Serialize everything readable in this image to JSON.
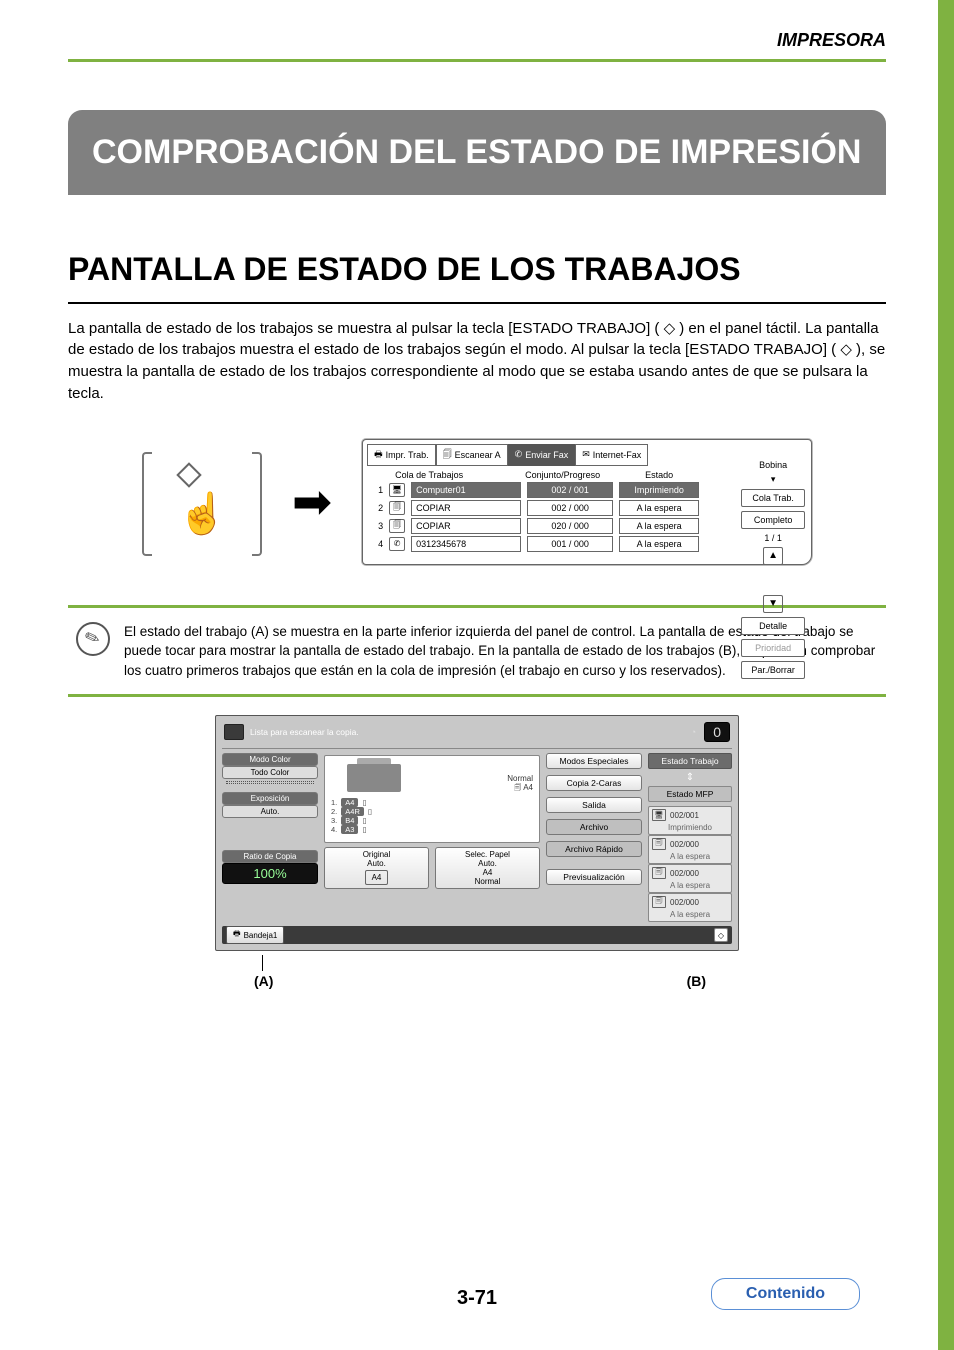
{
  "header": {
    "section": "IMPRESORA"
  },
  "banner": "COMPROBACIÓN DEL ESTADO DE IMPRESIÓN",
  "h2": "PANTALLA DE ESTADO DE LOS TRABAJOS",
  "intro": "La pantalla de estado de los trabajos se muestra al pulsar la tecla [ESTADO TRABAJO] ( ◇ ) en el panel táctil. La pantalla de estado de los trabajos muestra el estado de los trabajos según el modo. Al pulsar la tecla [ESTADO TRABAJO] ( ◇ ), se muestra la pantalla de estado de los trabajos correspondiente al modo que se estaba usando antes de que se pulsara la tecla.",
  "queue": {
    "tabs": {
      "print": "Impr. Trab.",
      "scan": "Escanear A",
      "fax": "Enviar Fax",
      "ifax": "Internet-Fax"
    },
    "cols": {
      "c1": "Cola de Trabajos",
      "c2": "Conjunto/Progreso",
      "c3": "Estado"
    },
    "rows": [
      {
        "n": "1",
        "icon": "🖥",
        "name": "Computer01",
        "set": "002 / 001",
        "state": "Imprimiendo",
        "hl": true
      },
      {
        "n": "2",
        "icon": "🗐",
        "name": "COPIAR",
        "set": "002 / 000",
        "state": "A la espera",
        "hl": false
      },
      {
        "n": "3",
        "icon": "🗐",
        "name": "COPIAR",
        "set": "020 / 000",
        "state": "A la espera",
        "hl": false
      },
      {
        "n": "4",
        "icon": "✆",
        "name": "0312345678",
        "set": "001 / 000",
        "state": "A la espera",
        "hl": false
      }
    ],
    "side": {
      "bobina": "Bobina",
      "cola": "Cola Trab.",
      "completo": "Completo",
      "frac": "1 / 1",
      "detalle": "Detalle",
      "prioridad": "Prioridad",
      "par": "Par./Borrar"
    }
  },
  "note": "El estado del trabajo (A) se muestra en la parte inferior izquierda del panel de control. La pantalla de estado del trabajo se puede tocar para mostrar la pantalla de estado del trabajo. En la pantalla de estado de los trabajos (B), se pueden comprobar los cuatro primeros trabajos que están en la cola de impresión (el trabajo en curso y los reservados).",
  "copy": {
    "ready": "Lista para escanear la copia.",
    "zero": "0",
    "modoColor": "Modo Color",
    "todoColor": "Todo Color",
    "exposicion": "Exposición",
    "auto": "Auto.",
    "ratioLabel": "Ratio de Copia",
    "ratio": "100%",
    "original": "Original",
    "originalAuto": "Auto.",
    "a4box": "A4",
    "selPapel": "Selec. Papel",
    "selAuto": "Auto.",
    "selA4": "A4",
    "selNormal": "Normal",
    "normal": "Normal",
    "a4": "A4",
    "trays": [
      {
        "n": "1.",
        "label": "A4"
      },
      {
        "n": "2.",
        "label": "A4R"
      },
      {
        "n": "3.",
        "label": "B4"
      },
      {
        "n": "4.",
        "label": "A3"
      }
    ],
    "rightBtns": {
      "modos": "Modos Especiales",
      "copia2": "Copia 2-Caras",
      "salida": "Salida",
      "archivo": "Archivo",
      "archivoR": "Archivo Rápido",
      "prev": "Previsualización"
    },
    "status": {
      "hdr": "Estado Trabajo",
      "sub": "Estado MFP",
      "jobs": [
        {
          "icon": "🖥",
          "set": "002/001",
          "state": "Imprimiendo"
        },
        {
          "icon": "🗐",
          "set": "002/000",
          "state": "A la espera"
        },
        {
          "icon": "🗐",
          "set": "002/000",
          "state": "A la espera"
        },
        {
          "icon": "🗐",
          "set": "002/000",
          "state": "A la espera"
        }
      ]
    },
    "bandeja": "Bandeja1"
  },
  "labels": {
    "a": "(A)",
    "b": "(B)"
  },
  "pagenum": "3-71",
  "contenido": "Contenido"
}
